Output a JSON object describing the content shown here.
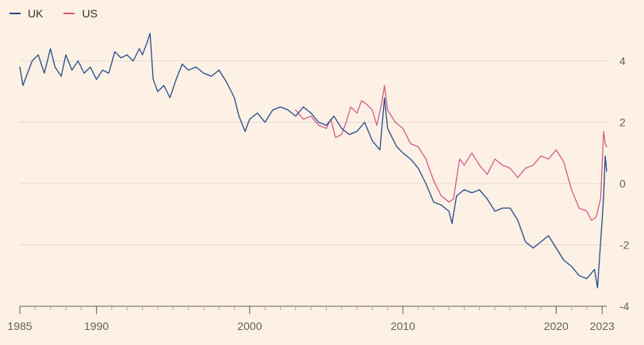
{
  "legend": [
    {
      "label": "UK",
      "color": "#264a8c"
    },
    {
      "label": "US",
      "color": "#d6598a"
    }
  ],
  "chart_data": {
    "type": "line",
    "title": "",
    "xlabel": "",
    "ylabel": "",
    "xlim": [
      1985,
      2023.3
    ],
    "ylim": [
      -4,
      5
    ],
    "x_ticks": [
      1985,
      1990,
      2000,
      2010,
      2020,
      2023
    ],
    "x_tick_labels": [
      "1985",
      "1990",
      "2000",
      "2010",
      "2020",
      "2023"
    ],
    "y_ticks": [
      4,
      2,
      0,
      -2,
      -4
    ],
    "y_tick_labels": [
      "4",
      "2",
      "0",
      "-2",
      "-4"
    ],
    "grid": "horizontal",
    "legend_position": "top-left",
    "series": [
      {
        "name": "UK",
        "color": "#264a8c",
        "points": [
          [
            1985.0,
            3.8
          ],
          [
            1985.2,
            3.2
          ],
          [
            1985.5,
            3.6
          ],
          [
            1985.8,
            4.0
          ],
          [
            1986.2,
            4.2
          ],
          [
            1986.6,
            3.6
          ],
          [
            1987.0,
            4.4
          ],
          [
            1987.3,
            3.8
          ],
          [
            1987.7,
            3.5
          ],
          [
            1988.0,
            4.2
          ],
          [
            1988.4,
            3.7
          ],
          [
            1988.8,
            4.0
          ],
          [
            1989.2,
            3.6
          ],
          [
            1989.6,
            3.8
          ],
          [
            1990.0,
            3.4
          ],
          [
            1990.4,
            3.7
          ],
          [
            1990.8,
            3.6
          ],
          [
            1991.2,
            4.3
          ],
          [
            1991.6,
            4.1
          ],
          [
            1992.0,
            4.2
          ],
          [
            1992.4,
            4.0
          ],
          [
            1992.8,
            4.4
          ],
          [
            1993.0,
            4.2
          ],
          [
            1993.3,
            4.6
          ],
          [
            1993.5,
            4.9
          ],
          [
            1993.7,
            3.4
          ],
          [
            1994.0,
            3.0
          ],
          [
            1994.4,
            3.2
          ],
          [
            1994.8,
            2.8
          ],
          [
            1995.2,
            3.4
          ],
          [
            1995.6,
            3.9
          ],
          [
            1996.0,
            3.7
          ],
          [
            1996.5,
            3.8
          ],
          [
            1997.0,
            3.6
          ],
          [
            1997.5,
            3.5
          ],
          [
            1998.0,
            3.7
          ],
          [
            1998.5,
            3.3
          ],
          [
            1999.0,
            2.8
          ],
          [
            1999.3,
            2.2
          ],
          [
            1999.7,
            1.7
          ],
          [
            2000.0,
            2.1
          ],
          [
            2000.5,
            2.3
          ],
          [
            2001.0,
            2.0
          ],
          [
            2001.5,
            2.4
          ],
          [
            2002.0,
            2.5
          ],
          [
            2002.5,
            2.4
          ],
          [
            2003.0,
            2.2
          ],
          [
            2003.5,
            2.5
          ],
          [
            2004.0,
            2.3
          ],
          [
            2004.5,
            2.0
          ],
          [
            2005.0,
            1.9
          ],
          [
            2005.5,
            2.2
          ],
          [
            2006.0,
            1.8
          ],
          [
            2006.5,
            1.6
          ],
          [
            2007.0,
            1.7
          ],
          [
            2007.5,
            2.0
          ],
          [
            2008.0,
            1.4
          ],
          [
            2008.5,
            1.1
          ],
          [
            2008.8,
            2.8
          ],
          [
            2009.0,
            1.8
          ],
          [
            2009.3,
            1.5
          ],
          [
            2009.6,
            1.2
          ],
          [
            2010.0,
            1.0
          ],
          [
            2010.5,
            0.8
          ],
          [
            2011.0,
            0.5
          ],
          [
            2011.5,
            0.0
          ],
          [
            2012.0,
            -0.6
          ],
          [
            2012.5,
            -0.7
          ],
          [
            2013.0,
            -0.9
          ],
          [
            2013.2,
            -1.3
          ],
          [
            2013.5,
            -0.4
          ],
          [
            2014.0,
            -0.2
          ],
          [
            2014.5,
            -0.3
          ],
          [
            2015.0,
            -0.2
          ],
          [
            2015.5,
            -0.5
          ],
          [
            2016.0,
            -0.9
          ],
          [
            2016.5,
            -0.8
          ],
          [
            2017.0,
            -0.8
          ],
          [
            2017.5,
            -1.2
          ],
          [
            2018.0,
            -1.9
          ],
          [
            2018.5,
            -2.1
          ],
          [
            2019.0,
            -1.9
          ],
          [
            2019.5,
            -1.7
          ],
          [
            2020.0,
            -2.1
          ],
          [
            2020.5,
            -2.5
          ],
          [
            2021.0,
            -2.7
          ],
          [
            2021.5,
            -3.0
          ],
          [
            2022.0,
            -3.1
          ],
          [
            2022.5,
            -2.8
          ],
          [
            2022.7,
            -3.4
          ],
          [
            2022.9,
            -1.9
          ],
          [
            2023.0,
            -1.2
          ],
          [
            2023.1,
            -0.4
          ],
          [
            2023.2,
            0.9
          ],
          [
            2023.3,
            0.4
          ]
        ]
      },
      {
        "name": "US",
        "color": "#d6598a",
        "points": [
          [
            2003.0,
            2.4
          ],
          [
            2003.5,
            2.1
          ],
          [
            2004.0,
            2.2
          ],
          [
            2004.5,
            1.9
          ],
          [
            2005.0,
            1.8
          ],
          [
            2005.3,
            2.1
          ],
          [
            2005.6,
            1.5
          ],
          [
            2006.0,
            1.6
          ],
          [
            2006.3,
            2.0
          ],
          [
            2006.6,
            2.5
          ],
          [
            2007.0,
            2.3
          ],
          [
            2007.3,
            2.7
          ],
          [
            2007.6,
            2.6
          ],
          [
            2008.0,
            2.4
          ],
          [
            2008.3,
            1.9
          ],
          [
            2008.6,
            2.6
          ],
          [
            2008.8,
            3.2
          ],
          [
            2009.0,
            2.4
          ],
          [
            2009.5,
            2.0
          ],
          [
            2010.0,
            1.8
          ],
          [
            2010.5,
            1.3
          ],
          [
            2011.0,
            1.2
          ],
          [
            2011.5,
            0.8
          ],
          [
            2012.0,
            0.1
          ],
          [
            2012.5,
            -0.4
          ],
          [
            2013.0,
            -0.6
          ],
          [
            2013.3,
            -0.5
          ],
          [
            2013.7,
            0.8
          ],
          [
            2014.0,
            0.6
          ],
          [
            2014.5,
            1.0
          ],
          [
            2015.0,
            0.6
          ],
          [
            2015.5,
            0.3
          ],
          [
            2016.0,
            0.8
          ],
          [
            2016.5,
            0.6
          ],
          [
            2017.0,
            0.5
          ],
          [
            2017.5,
            0.2
          ],
          [
            2018.0,
            0.5
          ],
          [
            2018.5,
            0.6
          ],
          [
            2019.0,
            0.9
          ],
          [
            2019.5,
            0.8
          ],
          [
            2020.0,
            1.1
          ],
          [
            2020.5,
            0.7
          ],
          [
            2021.0,
            -0.2
          ],
          [
            2021.5,
            -0.8
          ],
          [
            2022.0,
            -0.9
          ],
          [
            2022.3,
            -1.2
          ],
          [
            2022.6,
            -1.1
          ],
          [
            2022.9,
            -0.5
          ],
          [
            2023.0,
            0.6
          ],
          [
            2023.1,
            1.7
          ],
          [
            2023.2,
            1.3
          ],
          [
            2023.3,
            1.2
          ]
        ]
      }
    ]
  }
}
